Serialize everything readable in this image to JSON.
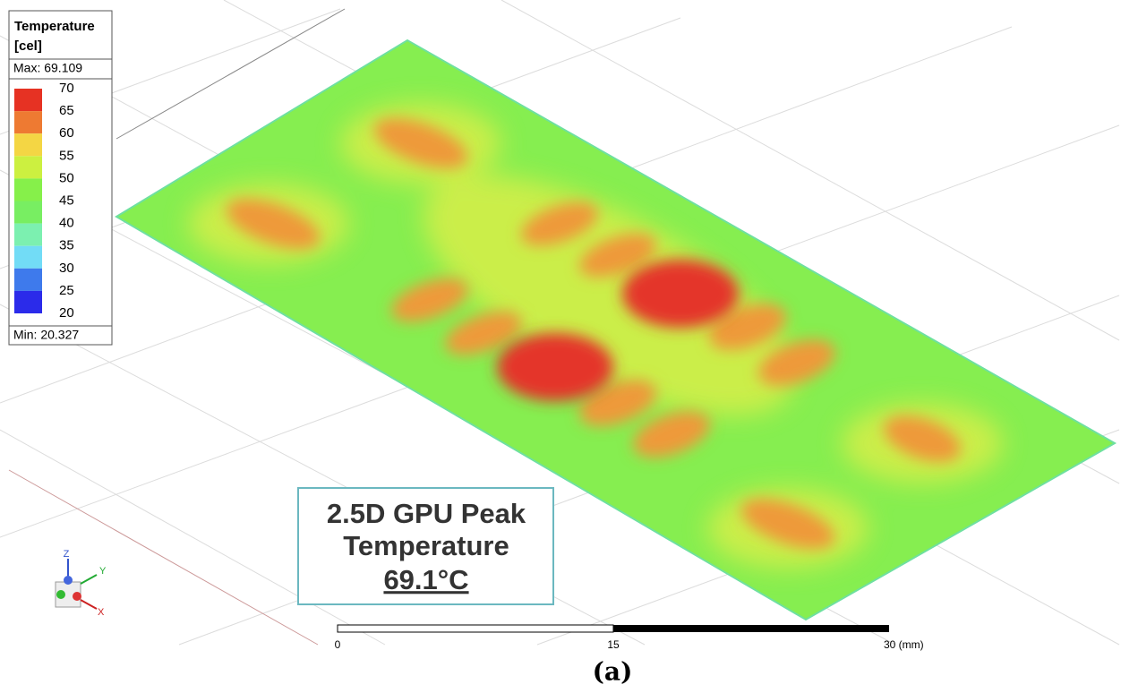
{
  "legend": {
    "title": "Temperature",
    "unit": "[cel]",
    "max": "Max: 69.109",
    "min": "Min: 20.327",
    "levels": [
      70,
      65,
      60,
      55,
      50,
      45,
      40,
      35,
      30,
      25,
      20
    ],
    "colors": [
      "#e63223",
      "#ee7a32",
      "#f4d644",
      "#ccf040",
      "#86f04a",
      "#78ee62",
      "#7cf0b0",
      "#72dcf6",
      "#3e7aec",
      "#2b2bea"
    ]
  },
  "annotation": {
    "line1": "2.5D GPU Peak",
    "line2": "Temperature",
    "peak": "69.1°C"
  },
  "scale_bar": {
    "labels": [
      "0",
      "15",
      "30 (mm)"
    ]
  },
  "triad": {
    "z": "Z",
    "y": "Y",
    "x": "X"
  },
  "caption": "(a)"
}
